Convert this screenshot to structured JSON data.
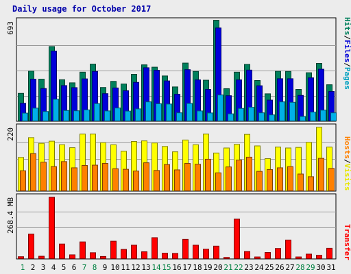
{
  "title": "Daily usage for October 2017",
  "chart_data": {
    "type": "bar",
    "categories": [
      "1",
      "2",
      "3",
      "4",
      "5",
      "6",
      "7",
      "8",
      "9",
      "10",
      "11",
      "12",
      "13",
      "14",
      "15",
      "16",
      "17",
      "18",
      "19",
      "20",
      "21",
      "22",
      "23",
      "24",
      "25",
      "26",
      "27",
      "28",
      "29",
      "30",
      "31"
    ],
    "weekend_days": [
      "1",
      "7",
      "8",
      "14",
      "15",
      "21",
      "22",
      "28",
      "29"
    ],
    "panels": [
      {
        "id": "hits-files-pages",
        "max_label": "693",
        "ymax": 693,
        "side_label": "Hits/Files/Pages",
        "side_colors": [
          "#00805c",
          "#0000d8",
          "#00a0c0"
        ],
        "series": [
          {
            "name": "Hits",
            "color": "#00805c",
            "values": [
              193,
              345,
              290,
              513,
              286,
              265,
              338,
              393,
              233,
              275,
              257,
              323,
              388,
              372,
              312,
              237,
              400,
              343,
              283,
              693,
              225,
              338,
              391,
              281,
              190,
              344,
              343,
              220,
              334,
              398,
              252
            ]
          },
          {
            "name": "Files",
            "color": "#0000d8",
            "values": [
              125,
              290,
              226,
              482,
              246,
              232,
              292,
              343,
              191,
              230,
              211,
              268,
              368,
              351,
              278,
              187,
              355,
              285,
              220,
              640,
              177,
              285,
              352,
              245,
              147,
              293,
              293,
              179,
              299,
              358,
              206
            ]
          },
          {
            "name": "Pages",
            "color": "#00b0e8",
            "values": [
              58,
              92,
              69,
              153,
              76,
              74,
              80,
              123,
              73,
              93,
              72,
              87,
              135,
              122,
              120,
              60,
              124,
              73,
              59,
              182,
              53,
              90,
              98,
              60,
              46,
              135,
              132,
              35,
              65,
              78,
              60
            ]
          }
        ]
      },
      {
        "id": "hosts-visits",
        "max_label": "220",
        "ymax": 220,
        "side_label": "Hosts/Visits",
        "side_colors": [
          "#ff8000",
          "#e8e800"
        ],
        "series": [
          {
            "name": "Visits",
            "color": "#ffff00",
            "values": [
              115,
              182,
              163,
              170,
              158,
              148,
              194,
              194,
              165,
              158,
              136,
              169,
              171,
              164,
              152,
              134,
              174,
              158,
              194,
              130,
              147,
              159,
              193,
              154,
              111,
              150,
              147,
              149,
              166,
              217,
              150
            ]
          },
          {
            "name": "Hosts",
            "color": "#ff8000",
            "values": [
              70,
              128,
              99,
              84,
              101,
              80,
              88,
              89,
              95,
              77,
              75,
              69,
              97,
              71,
              91,
              73,
              95,
              92,
              109,
              63,
              83,
              106,
              116,
              68,
              74,
              80,
              84,
              59,
              50,
              112,
              78
            ]
          }
        ]
      },
      {
        "id": "transfer",
        "max_label": "268.4 MB",
        "ymax": 268.4,
        "side_label": "Transfer",
        "side_colors": [
          "#ff0000"
        ],
        "series": [
          {
            "name": "Transfer",
            "color": "#ff0000",
            "values": [
              11,
              107,
              13,
              264,
              65,
              19,
              74,
              28,
              12,
              77,
              42,
              60,
              32,
              92,
              26,
              25,
              85,
              60,
              43,
              56,
              8,
              171,
              33,
              10,
              29,
              46,
              82,
              10,
              22,
              17,
              47
            ]
          }
        ]
      }
    ]
  }
}
